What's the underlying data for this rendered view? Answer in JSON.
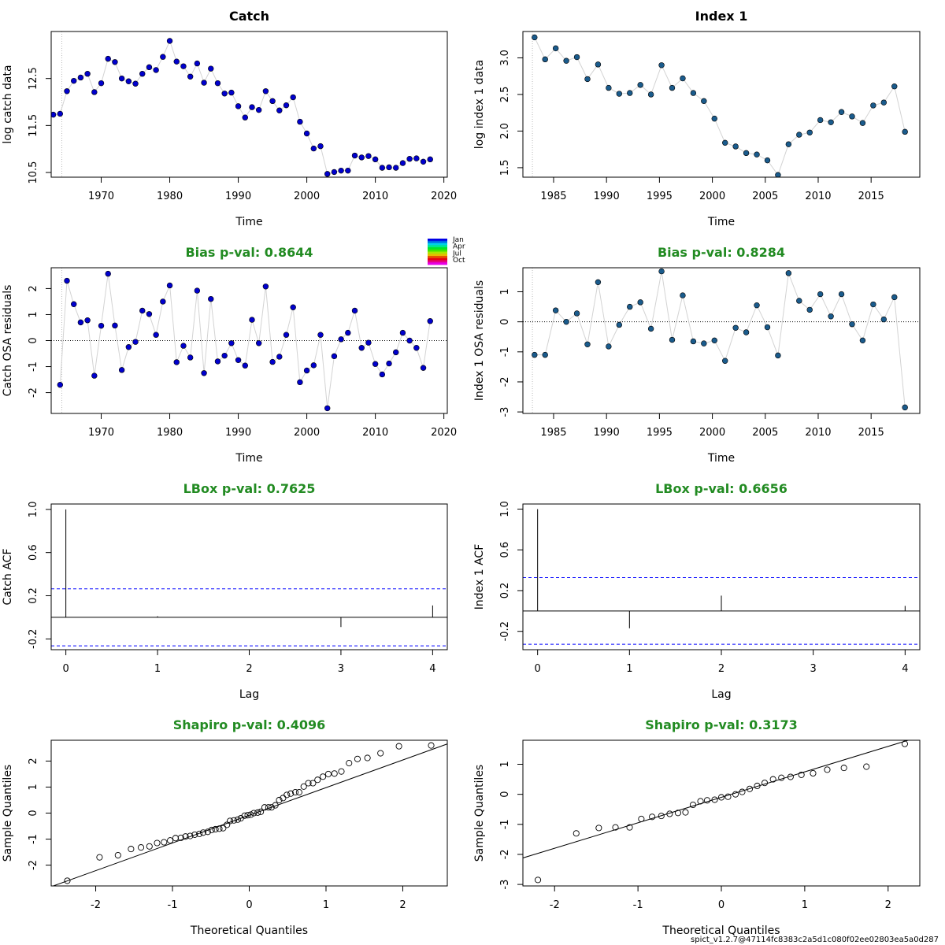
{
  "footer": "spict_v1.2.7@47114fc8383c2a5d1c080f02ee02803ea5a0d287",
  "colors": {
    "pval_green": "#228b22",
    "catch_points": "#0000cd",
    "index_points": "#1a5b8c",
    "ci_line": "#0000ff"
  },
  "month_legend": [
    "Jan",
    "Apr",
    "Jul",
    "Oct"
  ],
  "chart_data": [
    {
      "type": "line",
      "title": "Catch",
      "xlabel": "Time",
      "ylabel": "log catch data",
      "xlim": [
        1962.7,
        2020.5
      ],
      "ylim": [
        10.4,
        13.5
      ],
      "xticks": [
        1970,
        1980,
        1990,
        2000,
        2010,
        2020
      ],
      "yticks": [
        10.5,
        11.5,
        12.5
      ],
      "vline": 1964.25,
      "x": [
        1963,
        1964,
        1965,
        1966,
        1967,
        1968,
        1969,
        1970,
        1971,
        1972,
        1973,
        1974,
        1975,
        1976,
        1977,
        1978,
        1979,
        1980,
        1981,
        1982,
        1983,
        1984,
        1985,
        1986,
        1987,
        1988,
        1989,
        1990,
        1991,
        1992,
        1993,
        1994,
        1995,
        1996,
        1997,
        1998,
        1999,
        2000,
        2001,
        2002,
        2003,
        2004,
        2005,
        2006,
        2007,
        2008,
        2009,
        2010,
        2011,
        2012,
        2013,
        2014,
        2015,
        2016,
        2017,
        2018
      ],
      "y": [
        11.73,
        11.75,
        12.23,
        12.45,
        12.52,
        12.6,
        12.21,
        12.4,
        12.92,
        12.85,
        12.5,
        12.44,
        12.39,
        12.6,
        12.74,
        12.68,
        12.96,
        13.3,
        12.86,
        12.76,
        12.54,
        12.82,
        12.41,
        12.71,
        12.4,
        12.18,
        12.2,
        11.91,
        11.67,
        11.89,
        11.83,
        12.23,
        12.02,
        11.82,
        11.93,
        12.1,
        11.58,
        11.33,
        11.01,
        11.06,
        10.47,
        10.51,
        10.54,
        10.54,
        10.86,
        10.82,
        10.85,
        10.78,
        10.6,
        10.61,
        10.6,
        10.7,
        10.79,
        10.8,
        10.73,
        10.78
      ]
    },
    {
      "type": "line",
      "title": "Index 1",
      "xlabel": "Time",
      "ylabel": "log index 1 data",
      "xlim": [
        1982.1,
        2019.6
      ],
      "ylim": [
        1.37,
        3.36
      ],
      "xticks": [
        1985,
        1990,
        1995,
        2000,
        2005,
        2010,
        2015
      ],
      "yticks": [
        1.5,
        2.0,
        2.5,
        3.0
      ],
      "vline": 1983.0,
      "x": [
        1983.2,
        1984.2,
        1985.2,
        1986.2,
        1987.2,
        1988.2,
        1989.2,
        1990.2,
        1991.2,
        1992.2,
        1993.2,
        1994.2,
        1995.2,
        1996.2,
        1997.2,
        1998.2,
        1999.2,
        2000.2,
        2001.2,
        2002.2,
        2003.2,
        2004.2,
        2005.2,
        2006.2,
        2007.2,
        2008.2,
        2009.2,
        2010.2,
        2011.2,
        2012.2,
        2013.2,
        2014.2,
        2015.2,
        2016.2,
        2017.2,
        2018.2
      ],
      "y": [
        3.28,
        2.98,
        3.13,
        2.96,
        3.01,
        2.71,
        2.91,
        2.59,
        2.51,
        2.52,
        2.63,
        2.5,
        2.9,
        2.59,
        2.72,
        2.52,
        2.41,
        2.17,
        1.84,
        1.79,
        1.7,
        1.68,
        1.6,
        1.4,
        1.82,
        1.95,
        1.98,
        2.15,
        2.12,
        2.26,
        2.2,
        2.11,
        2.35,
        2.39,
        2.61,
        1.99
      ]
    },
    {
      "type": "line",
      "title": "Bias p-val: 0.8644",
      "xlabel": "Time",
      "ylabel": "Catch OSA residuals",
      "xlim": [
        1962.7,
        2020.5
      ],
      "ylim": [
        -2.8,
        2.8
      ],
      "xticks": [
        1970,
        1980,
        1990,
        2000,
        2010,
        2020
      ],
      "yticks": [
        -2,
        -1,
        0,
        1,
        2
      ],
      "vline": 1964.25,
      "x": [
        1964,
        1965,
        1966,
        1967,
        1968,
        1969,
        1970,
        1971,
        1972,
        1973,
        1974,
        1975,
        1976,
        1977,
        1978,
        1979,
        1980,
        1981,
        1982,
        1983,
        1984,
        1985,
        1986,
        1987,
        1988,
        1989,
        1990,
        1991,
        1992,
        1993,
        1994,
        1995,
        1996,
        1997,
        1998,
        1999,
        2000,
        2001,
        2002,
        2003,
        2004,
        2005,
        2006,
        2007,
        2008,
        2009,
        2010,
        2011,
        2012,
        2013,
        2014,
        2015,
        2016,
        2017,
        2018
      ],
      "y": [
        -1.7,
        2.3,
        1.4,
        0.7,
        0.78,
        -1.35,
        0.57,
        2.57,
        0.58,
        -1.13,
        -0.25,
        -0.05,
        1.15,
        1.02,
        0.22,
        1.5,
        2.12,
        -0.83,
        -0.2,
        -0.65,
        1.92,
        -1.25,
        1.6,
        -0.8,
        -0.58,
        -0.1,
        -0.75,
        -0.96,
        0.8,
        -0.1,
        2.08,
        -0.82,
        -0.62,
        0.22,
        1.28,
        -1.6,
        -1.15,
        -0.95,
        0.22,
        -2.6,
        -0.6,
        0.05,
        0.3,
        1.15,
        -0.28,
        -0.08,
        -0.9,
        -1.3,
        -0.88,
        -0.45,
        0.3,
        0.0,
        -0.28,
        -1.05,
        0.75
      ]
    },
    {
      "type": "line",
      "title": "Bias p-val: 0.8284",
      "xlabel": "Time",
      "ylabel": "Index 1 OSA residuals",
      "xlim": [
        1982.1,
        2019.6
      ],
      "ylim": [
        -3.05,
        1.8
      ],
      "xticks": [
        1985,
        1990,
        1995,
        2000,
        2005,
        2010,
        2015
      ],
      "yticks": [
        -3,
        -2,
        -1,
        0,
        1
      ],
      "vline": 1983.0,
      "x": [
        1983.2,
        1984.2,
        1985.2,
        1986.2,
        1987.2,
        1988.2,
        1989.2,
        1990.2,
        1991.2,
        1992.2,
        1993.2,
        1994.2,
        1995.2,
        1996.2,
        1997.2,
        1998.2,
        1999.2,
        2000.2,
        2001.2,
        2002.2,
        2003.2,
        2004.2,
        2005.2,
        2006.2,
        2007.2,
        2008.2,
        2009.2,
        2010.2,
        2011.2,
        2012.2,
        2013.2,
        2014.2,
        2015.2,
        2016.2,
        2017.2,
        2018.2
      ],
      "y": [
        -1.1,
        -1.1,
        0.38,
        0.0,
        0.28,
        -0.75,
        1.32,
        -0.82,
        -0.1,
        0.5,
        0.65,
        -0.23,
        1.68,
        -0.6,
        0.88,
        -0.65,
        -0.72,
        -0.62,
        -1.3,
        -0.2,
        -0.35,
        0.55,
        -0.18,
        -1.12,
        1.62,
        0.7,
        0.4,
        0.92,
        0.18,
        0.92,
        -0.08,
        -0.62,
        0.58,
        0.08,
        0.82,
        -2.85
      ]
    },
    {
      "type": "bar",
      "title": "LBox p-val: 0.7625",
      "xlabel": "Lag",
      "ylabel": "Catch ACF",
      "xlim": [
        -0.16,
        4.16
      ],
      "ylim": [
        -0.3,
        1.05
      ],
      "xticks": [
        0,
        1,
        2,
        3,
        4
      ],
      "yticks": [
        -0.2,
        0.2,
        0.6,
        1.0
      ],
      "ci": 0.264,
      "categories": [
        0,
        1,
        2,
        3,
        4
      ],
      "values": [
        1.0,
        0.01,
        0.0,
        -0.09,
        0.11
      ]
    },
    {
      "type": "bar",
      "title": "LBox p-val: 0.6656",
      "xlabel": "Lag",
      "ylabel": "Index 1 ACF",
      "xlim": [
        -0.16,
        4.16
      ],
      "ylim": [
        -0.38,
        1.05
      ],
      "xticks": [
        0,
        1,
        2,
        3,
        4
      ],
      "yticks": [
        -0.2,
        0.2,
        0.6,
        1.0
      ],
      "ci": 0.327,
      "categories": [
        0,
        1,
        2,
        3,
        4
      ],
      "values": [
        1.0,
        -0.17,
        0.15,
        0.0,
        0.05
      ]
    },
    {
      "type": "scatter",
      "title": "Shapiro p-val: 0.4096",
      "xlabel": "Theoretical Quantiles",
      "ylabel": "Sample Quantiles",
      "xlim": [
        -2.58,
        2.58
      ],
      "ylim": [
        -2.8,
        2.8
      ],
      "xticks": [
        -2,
        -1,
        0,
        1,
        2
      ],
      "yticks": [
        -2,
        -1,
        0,
        1,
        2
      ],
      "qqline": [
        [
          -2.6,
          -2.85
        ],
        [
          2.6,
          2.68
        ]
      ],
      "x": [
        -2.37,
        -1.95,
        -1.71,
        -1.54,
        -1.41,
        -1.3,
        -1.2,
        -1.11,
        -1.03,
        -0.96,
        -0.89,
        -0.83,
        -0.77,
        -0.71,
        -0.65,
        -0.6,
        -0.54,
        -0.49,
        -0.44,
        -0.39,
        -0.34,
        -0.29,
        -0.25,
        -0.2,
        -0.15,
        -0.11,
        -0.06,
        -0.02,
        0.02,
        0.06,
        0.11,
        0.15,
        0.2,
        0.25,
        0.29,
        0.34,
        0.39,
        0.44,
        0.49,
        0.54,
        0.6,
        0.65,
        0.71,
        0.77,
        0.83,
        0.89,
        0.96,
        1.03,
        1.11,
        1.2,
        1.3,
        1.41,
        1.54,
        1.71,
        1.95,
        2.37
      ],
      "y": [
        -2.6,
        -1.7,
        -1.62,
        -1.38,
        -1.32,
        -1.28,
        -1.15,
        -1.12,
        -1.05,
        -0.96,
        -0.95,
        -0.9,
        -0.88,
        -0.83,
        -0.8,
        -0.75,
        -0.72,
        -0.65,
        -0.62,
        -0.6,
        -0.58,
        -0.45,
        -0.3,
        -0.28,
        -0.25,
        -0.2,
        -0.1,
        -0.08,
        -0.06,
        0.0,
        0.02,
        0.05,
        0.22,
        0.22,
        0.22,
        0.3,
        0.5,
        0.58,
        0.7,
        0.75,
        0.8,
        0.8,
        1.02,
        1.15,
        1.15,
        1.28,
        1.4,
        1.5,
        1.52,
        1.6,
        1.92,
        2.08,
        2.12,
        2.3,
        2.57,
        2.6
      ]
    },
    {
      "type": "scatter",
      "title": "Shapiro p-val: 0.3173",
      "xlabel": "Theoretical Quantiles",
      "ylabel": "Sample Quantiles",
      "xlim": [
        -2.38,
        2.38
      ],
      "ylim": [
        -3.05,
        1.8
      ],
      "xticks": [
        -2,
        -1,
        0,
        1,
        2
      ],
      "yticks": [
        -3,
        -2,
        -1,
        0,
        1
      ],
      "qqline": [
        [
          -2.5,
          -2.22
        ],
        [
          2.5,
          2.02
        ]
      ],
      "x": [
        -2.2,
        -1.74,
        -1.47,
        -1.27,
        -1.1,
        -0.96,
        -0.83,
        -0.72,
        -0.62,
        -0.52,
        -0.43,
        -0.34,
        -0.25,
        -0.17,
        -0.08,
        0.0,
        0.08,
        0.17,
        0.25,
        0.34,
        0.43,
        0.52,
        0.62,
        0.72,
        0.83,
        0.96,
        1.1,
        1.27,
        1.47,
        1.74,
        2.2
      ],
      "y": [
        -2.85,
        -1.3,
        -1.12,
        -1.1,
        -1.1,
        -0.82,
        -0.75,
        -0.72,
        -0.65,
        -0.62,
        -0.6,
        -0.35,
        -0.23,
        -0.2,
        -0.18,
        -0.1,
        -0.08,
        0.0,
        0.08,
        0.18,
        0.28,
        0.38,
        0.5,
        0.55,
        0.58,
        0.65,
        0.7,
        0.82,
        0.88,
        0.92,
        1.68
      ]
    }
  ]
}
